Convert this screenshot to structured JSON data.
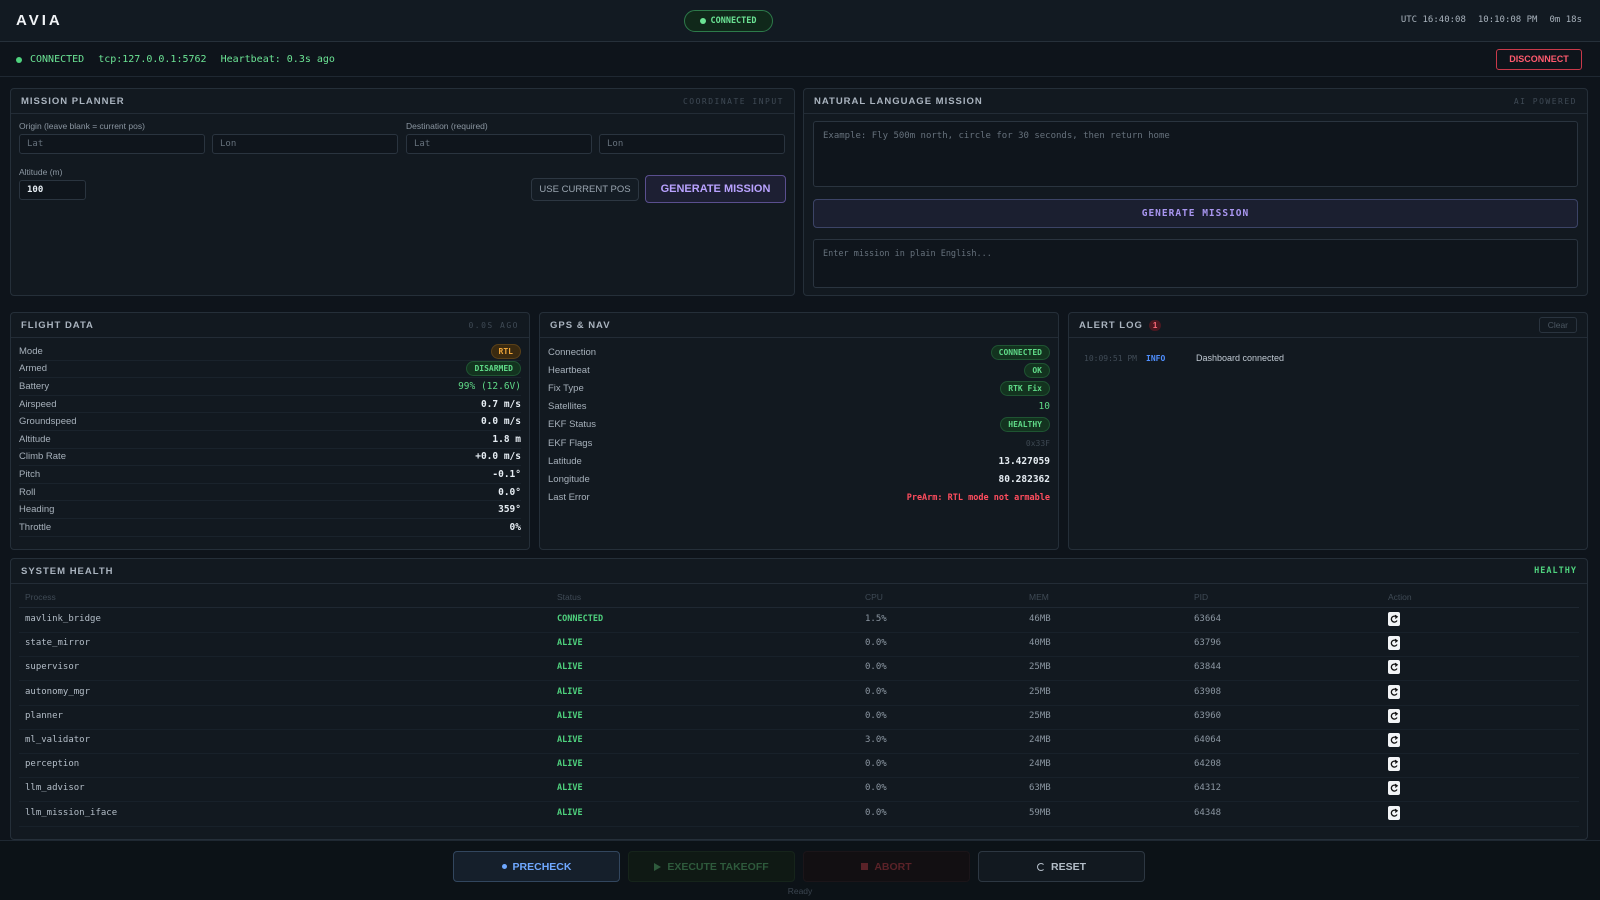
{
  "header": {
    "brand": "AVIA",
    "status": "CONNECTED",
    "utc": "UTC 16:40:08",
    "local": "10:10:08 PM",
    "uptime": "0m 18s"
  },
  "conn_bar": {
    "status": "CONNECTED",
    "address": "tcp:127.0.0.1:5762",
    "heartbeat": "Heartbeat: 0.3s ago",
    "disconnect": "DISCONNECT"
  },
  "mission_planner": {
    "title": "MISSION PLANNER",
    "tag": "COORDINATE INPUT",
    "origin_label": "Origin (leave blank = current pos)",
    "dest_label": "Destination (required)",
    "origin_lat": "Lat",
    "origin_lon": "Lon",
    "dest_lat": "Lat",
    "dest_lon": "Lon",
    "altitude_label": "Altitude (m)",
    "altitude": "100",
    "use_current": "USE CURRENT POS",
    "generate": "GENERATE MISSION"
  },
  "nl_mission": {
    "title": "NATURAL LANGUAGE MISSION",
    "tag": "AI POWERED",
    "placeholder": "Example: Fly 500m north, circle for 30 seconds, then return home",
    "generate": "GENERATE MISSION",
    "output": "Enter mission in plain English..."
  },
  "flight_data": {
    "title": "FLIGHT DATA",
    "tag": "0.0S AGO",
    "rows": [
      [
        "Mode",
        "RTL"
      ],
      [
        "Armed",
        "DISARMED"
      ],
      [
        "Battery",
        "99% (12.6V)"
      ],
      [
        "Airspeed",
        "0.7 m/s"
      ],
      [
        "Groundspeed",
        "0.0 m/s"
      ],
      [
        "Altitude",
        "1.8 m"
      ],
      [
        "Climb Rate",
        "+0.0 m/s"
      ],
      [
        "Pitch",
        "-0.1°"
      ],
      [
        "Roll",
        "0.0°"
      ],
      [
        "Heading",
        "359°"
      ],
      [
        "Throttle",
        "0%"
      ]
    ]
  },
  "gps_nav": {
    "title": "GPS & NAV",
    "rows": [
      [
        "Connection",
        "CONNECTED"
      ],
      [
        "Heartbeat",
        "OK"
      ],
      [
        "Fix Type",
        "RTK Fix"
      ],
      [
        "Satellites",
        "10"
      ],
      [
        "EKF Status",
        "HEALTHY"
      ],
      [
        "EKF Flags",
        "0x33F"
      ],
      [
        "Latitude",
        "13.427059"
      ],
      [
        "Longitude",
        "80.282362"
      ],
      [
        "Last Error",
        "PreArm: RTL mode not armable"
      ]
    ]
  },
  "alert_log": {
    "title": "ALERT LOG",
    "count": "1",
    "clear": "Clear",
    "entries": [
      {
        "time": "10:09:51 PM",
        "level": "INFO",
        "message": "Dashboard connected"
      }
    ]
  },
  "system_health": {
    "title": "SYSTEM HEALTH",
    "status": "HEALTHY",
    "columns": [
      "Process",
      "Status",
      "CPU",
      "MEM",
      "PID",
      "Action"
    ],
    "rows": [
      [
        "mavlink_bridge",
        "CONNECTED",
        "1.5%",
        "46MB",
        "63664"
      ],
      [
        "state_mirror",
        "ALIVE",
        "0.0%",
        "40MB",
        "63796"
      ],
      [
        "supervisor",
        "ALIVE",
        "0.0%",
        "25MB",
        "63844"
      ],
      [
        "autonomy_mgr",
        "ALIVE",
        "0.0%",
        "25MB",
        "63908"
      ],
      [
        "planner",
        "ALIVE",
        "0.0%",
        "25MB",
        "63960"
      ],
      [
        "ml_validator",
        "ALIVE",
        "3.0%",
        "24MB",
        "64064"
      ],
      [
        "perception",
        "ALIVE",
        "0.0%",
        "24MB",
        "64208"
      ],
      [
        "llm_advisor",
        "ALIVE",
        "0.0%",
        "63MB",
        "64312"
      ],
      [
        "llm_mission_iface",
        "ALIVE",
        "0.0%",
        "59MB",
        "64348"
      ]
    ]
  },
  "controls": {
    "precheck": "PRECHECK",
    "takeoff": "EXECUTE TAKEOFF",
    "abort": "ABORT",
    "reset": "RESET",
    "status": "Ready"
  }
}
